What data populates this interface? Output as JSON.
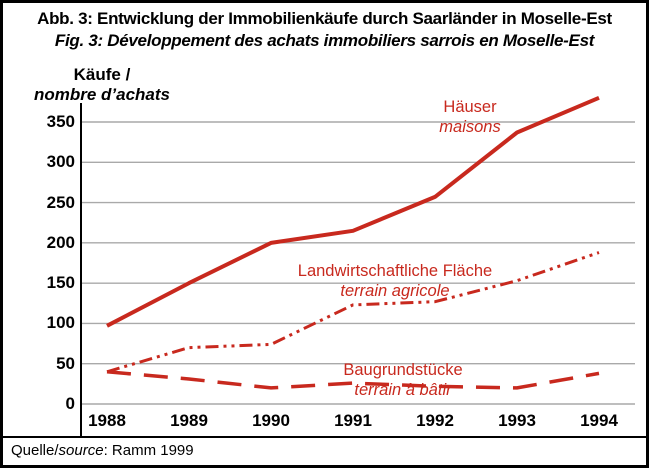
{
  "title": {
    "line1": "Abb. 3: Entwicklung der Immobilienkäufe durch Saarländer in Moselle-Est",
    "line2": "Fig. 3: Développement des achats immobiliers sarrois en Moselle-Est"
  },
  "y_axis_label": {
    "line1": "Käufe /",
    "line2": "nombre d’achats"
  },
  "footer": {
    "prefix": "Quelle/",
    "source_word": "source",
    "suffix": ": Ramm 1999"
  },
  "chart_data": {
    "type": "line",
    "x": [
      1988,
      1989,
      1990,
      1991,
      1992,
      1993,
      1994
    ],
    "series": [
      {
        "name": "Häuser",
        "name_fr": "maisons",
        "style": "solid",
        "values": [
          97,
          150,
          200,
          215,
          257,
          337,
          380
        ]
      },
      {
        "name": "Landwirtschaftliche Fläche",
        "name_fr": "terrain agricole",
        "style": "dash-dot-dot",
        "values": [
          40,
          70,
          74,
          123,
          127,
          153,
          188
        ]
      },
      {
        "name": "Baugrundstücke",
        "name_fr": "terrain à bâtir",
        "style": "dashed",
        "values": [
          40,
          31,
          20,
          26,
          22,
          20,
          38
        ]
      }
    ],
    "ylim": [
      0,
      390
    ],
    "yticks": [
      0,
      50,
      100,
      150,
      200,
      250,
      300,
      350
    ],
    "grid": true,
    "legend_position": "inline-labels",
    "line_color": "#c8291e",
    "grid_color": "#a9a9a9"
  }
}
